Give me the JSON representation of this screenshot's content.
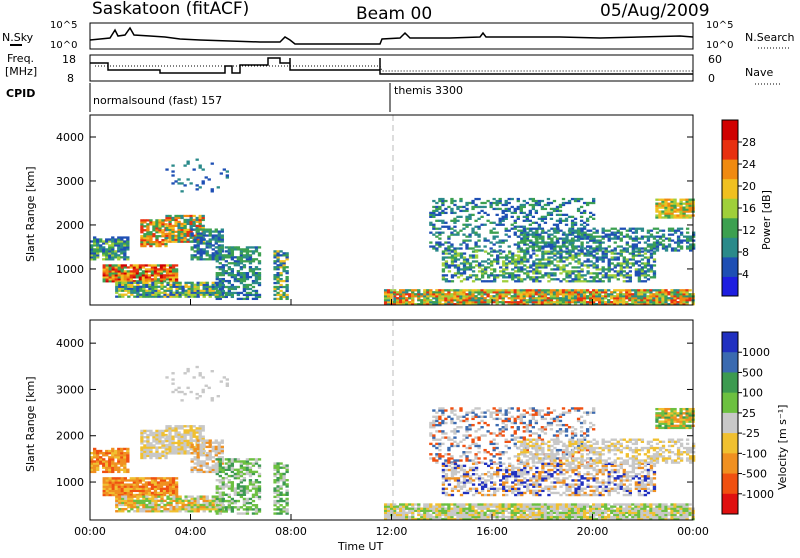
{
  "header": {
    "station": "Saskatoon (fitACF)",
    "beam": "Beam 00",
    "date": "05/Aug/2009"
  },
  "top_panels": {
    "nsky_label": "N.Sky",
    "nsky_ticks": [
      "10^5",
      "10^0"
    ],
    "nsearch_label": "N.Search",
    "nsearch_ticks": [
      "10^5",
      "10^0"
    ],
    "freq_label_1": "Freq.",
    "freq_label_2": "[MHz]",
    "freq_ticks": [
      "18",
      "8"
    ],
    "nave_label": "Nave",
    "nave_ticks": [
      "60",
      "0"
    ],
    "cpid_label": "CPID",
    "cpid_1": "normalsound (fast) 157",
    "cpid_2": "themis 3300"
  },
  "chart_data": [
    {
      "type": "heatmap",
      "name": "power-panel",
      "ylabel": "Slant Range [km]",
      "ylim": [
        180,
        4500
      ],
      "yticks": [
        "1000",
        "2000",
        "3000",
        "4000"
      ],
      "xlim": [
        0,
        24
      ],
      "colorbar_label": "Power [dB]",
      "colorbar_ticks": [
        "4",
        "8",
        "12",
        "16",
        "20",
        "24",
        "28"
      ],
      "colors": [
        "#1e1ee0",
        "#1e4fb4",
        "#2a8a8a",
        "#3ca050",
        "#9fcf3a",
        "#f0c020",
        "#f08a10",
        "#e83010",
        "#d00000"
      ]
    },
    {
      "type": "heatmap",
      "name": "velocity-panel",
      "ylabel": "Slant Range [km]",
      "ylim": [
        180,
        4500
      ],
      "yticks": [
        "1000",
        "2000",
        "3000",
        "4000"
      ],
      "xlim": [
        0,
        24
      ],
      "xticks": [
        "00:00",
        "04:00",
        "08:00",
        "12:00",
        "16:00",
        "20:00",
        "00:00"
      ],
      "xlabel": "Time UT",
      "colorbar_label": "Velocity [m s⁻¹]",
      "colorbar_ticks": [
        "1000",
        "500",
        "100",
        "25",
        "-25",
        "-100",
        "-500",
        "-1000"
      ],
      "colors": [
        "#2030c0",
        "#3a6ab0",
        "#3c9a50",
        "#6cc040",
        "#c8c8c8",
        "#f0c030",
        "#f09020",
        "#f05010",
        "#e01010"
      ]
    }
  ]
}
